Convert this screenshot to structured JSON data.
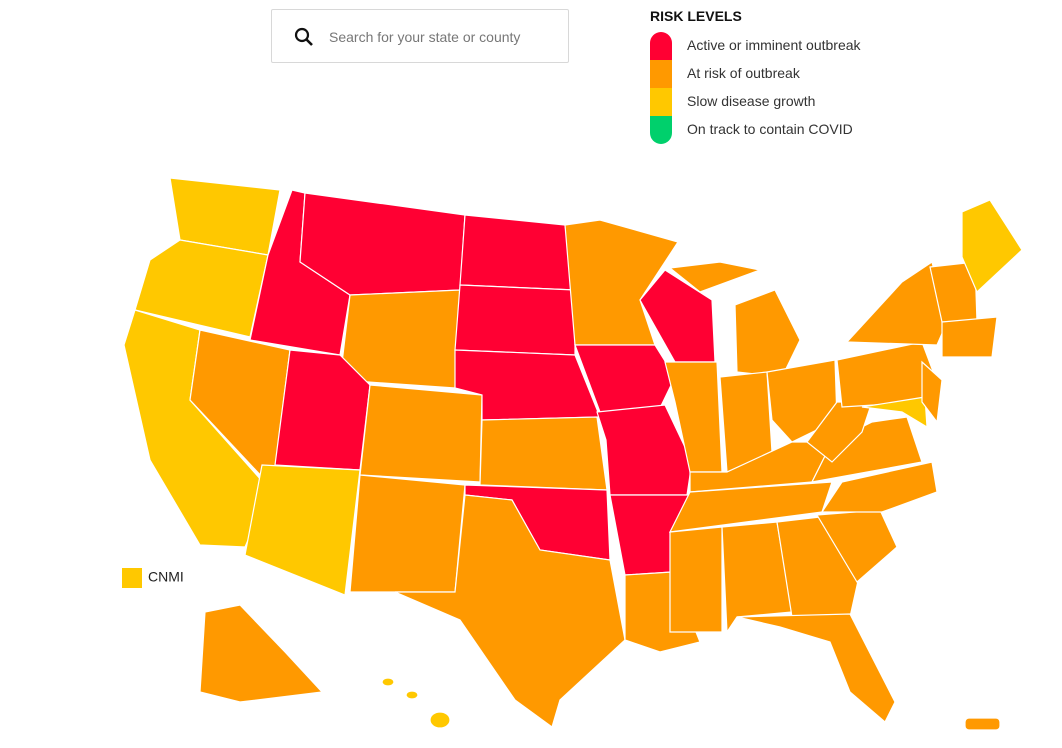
{
  "search": {
    "placeholder": "Search for your state or county"
  },
  "legend": {
    "title": "RISK LEVELS",
    "items": [
      {
        "label": "Active or imminent outbreak",
        "color": "#ff0033"
      },
      {
        "label": "At risk of outbreak",
        "color": "#ff9900"
      },
      {
        "label": "Slow disease growth",
        "color": "#ffc800"
      },
      {
        "label": "On track to contain COVID",
        "color": "#00d06c"
      }
    ]
  },
  "insets": {
    "label": "CNMI"
  }
}
